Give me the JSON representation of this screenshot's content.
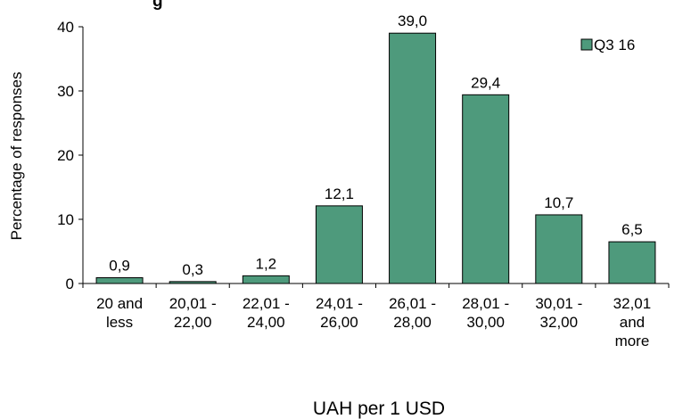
{
  "chart_data": {
    "type": "bar",
    "title": "g",
    "xlabel": "UAH per 1 USD",
    "ylabel": "Percentage of responses",
    "ylim": [
      0,
      40
    ],
    "yticks": [
      0,
      10,
      20,
      30,
      40
    ],
    "categories": [
      [
        "20 and",
        "less"
      ],
      [
        "20,01 -",
        "22,00"
      ],
      [
        "22,01 -",
        "24,00"
      ],
      [
        "24,01 -",
        "26,00"
      ],
      [
        "26,01 -",
        "28,00"
      ],
      [
        "28,01 -",
        "30,00"
      ],
      [
        "30,01 -",
        "32,00"
      ],
      [
        "32,01",
        "and",
        "more"
      ]
    ],
    "series": [
      {
        "name": "Q3 16",
        "values": [
          0.9,
          0.3,
          1.2,
          12.1,
          39.0,
          29.4,
          10.7,
          6.5
        ],
        "labels": [
          "0,9",
          "0,3",
          "1,2",
          "12,1",
          "39,0",
          "29,4",
          "10,7",
          "6,5"
        ],
        "color": "#4e9a7c"
      }
    ],
    "legend_position": "top-right",
    "grid": false
  }
}
